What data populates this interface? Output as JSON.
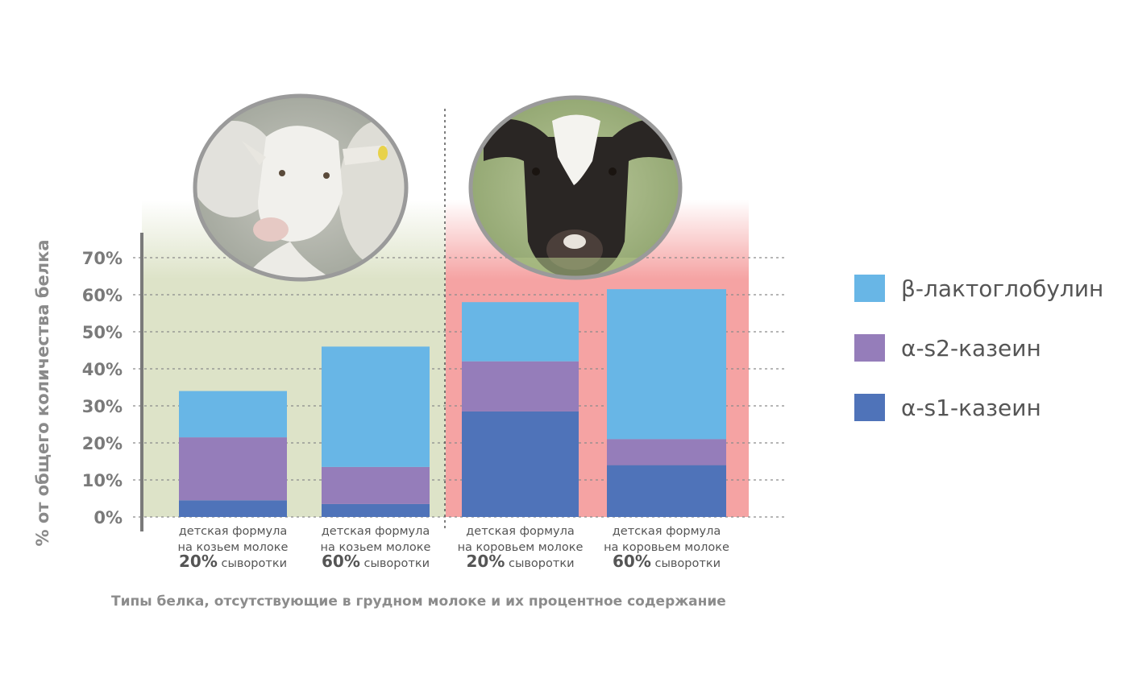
{
  "chart_data": {
    "type": "bar",
    "stacked": true,
    "title": "",
    "ylabel": "% от общего количества белка",
    "ylim": [
      0,
      70
    ],
    "yticks": [
      "0%",
      "10%",
      "20%",
      "30%",
      "40%",
      "50%",
      "60%",
      "70%"
    ],
    "grid": true,
    "legend_position": "right",
    "categories": [
      {
        "line1": "детская формула",
        "line2": "на козьем молоке",
        "pct": "20%",
        "whey": "сыворотки",
        "group": "goat"
      },
      {
        "line1": "детская формула",
        "line2": "на козьем молоке",
        "pct": "60%",
        "whey": "сыворотки",
        "group": "goat"
      },
      {
        "line1": "детская формула",
        "line2": "на коровьем молоке",
        "pct": "20%",
        "whey": "сыворотки",
        "group": "cow"
      },
      {
        "line1": "детская формула",
        "line2": "на коровьем молоке",
        "pct": "60%",
        "whey": "сыворотки",
        "group": "cow"
      }
    ],
    "series": [
      {
        "name": "α-s1-казеин",
        "color": "#4f73b9",
        "values": [
          4.5,
          3.5,
          28.5,
          14
        ]
      },
      {
        "name": "α-s2-казеин",
        "color": "#957dba",
        "values": [
          17,
          10,
          13.5,
          7
        ]
      },
      {
        "name": "β-лактоглобулин",
        "color": "#68b6e6",
        "values": [
          12.5,
          32.5,
          16,
          40.5
        ]
      }
    ],
    "legend_order": [
      "β-лактоглобулин",
      "α-s2-казеин",
      "α-s1-казеин"
    ],
    "caption": "Типы белка, отсутствующие  в грудном молоке и их процентное содержание"
  },
  "colors": {
    "goat_panel": "#dde3c8",
    "cow_panel": "#f5a3a3",
    "grid": "#8a8a8a",
    "axis": "#7a7a7a"
  },
  "images": {
    "goat": "goat-photo",
    "cow": "cow-photo"
  }
}
